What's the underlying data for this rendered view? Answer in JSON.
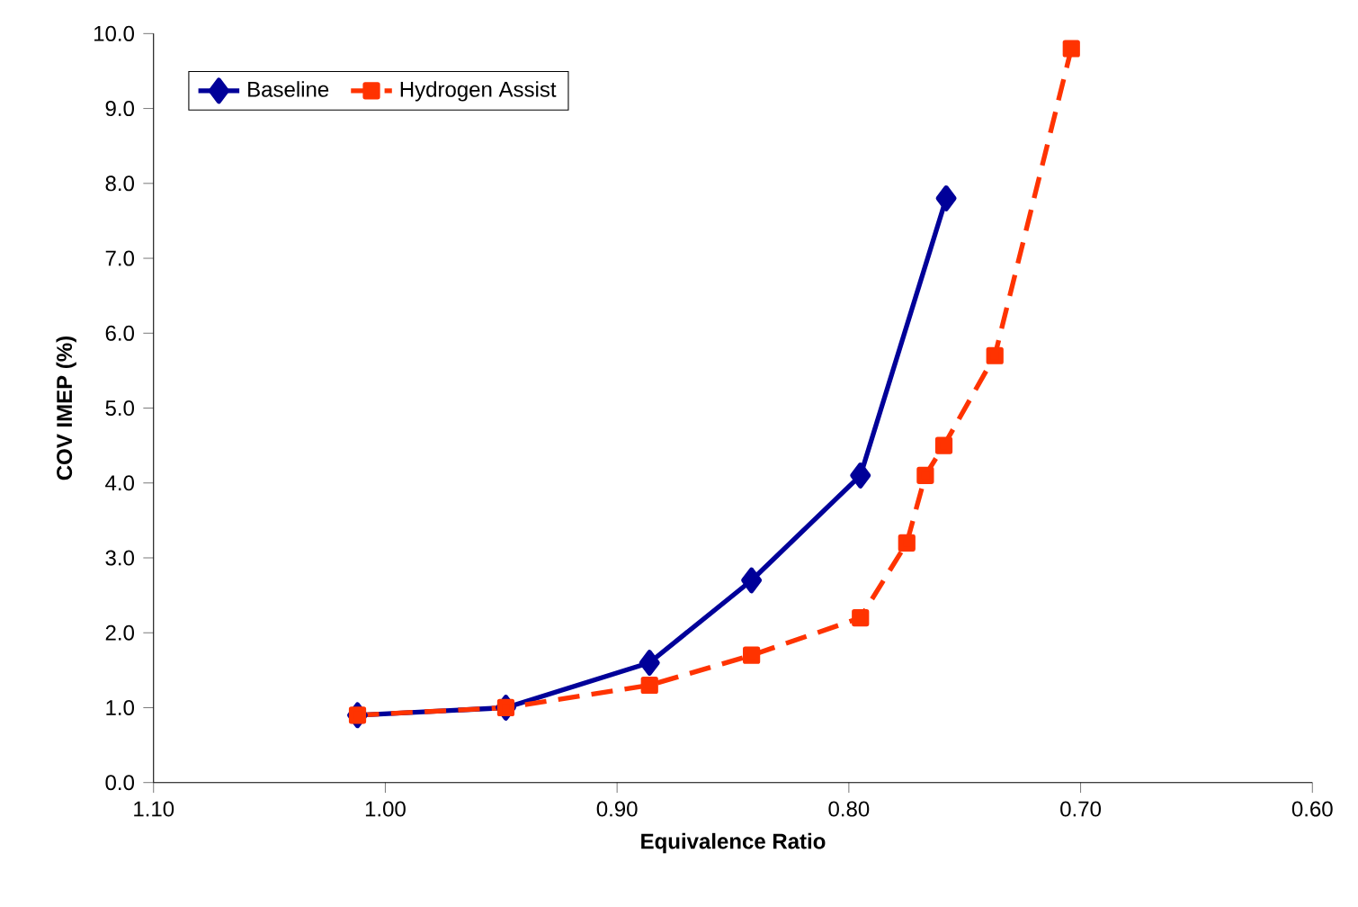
{
  "chart_data": {
    "type": "line",
    "xlabel": "Equivalence Ratio",
    "ylabel": "COV IMEP (%)",
    "xlim": [
      1.1,
      0.6
    ],
    "xticks": [
      {
        "value": 1.1,
        "label": "1.10"
      },
      {
        "value": 1.0,
        "label": "1.00"
      },
      {
        "value": 0.9,
        "label": "0.90"
      },
      {
        "value": 0.8,
        "label": "0.80"
      },
      {
        "value": 0.7,
        "label": "0.70"
      },
      {
        "value": 0.6,
        "label": "0.60"
      }
    ],
    "ylim": [
      0,
      10
    ],
    "yticks": [
      {
        "value": 0,
        "label": "0.0"
      },
      {
        "value": 1,
        "label": "1.0"
      },
      {
        "value": 2,
        "label": "2.0"
      },
      {
        "value": 3,
        "label": "3.0"
      },
      {
        "value": 4,
        "label": "4.0"
      },
      {
        "value": 5,
        "label": "5.0"
      },
      {
        "value": 6,
        "label": "6.0"
      },
      {
        "value": 7,
        "label": "7.0"
      },
      {
        "value": 8,
        "label": "8.0"
      },
      {
        "value": 9,
        "label": "9.0"
      },
      {
        "value": 10,
        "label": "10.0"
      }
    ],
    "grid": false,
    "legend": "top left",
    "series": [
      {
        "name": "Baseline",
        "color": "#000099",
        "marker": "diamond",
        "line_style": "solid",
        "x": [
          1.012,
          0.948,
          0.886,
          0.842,
          0.795,
          0.758
        ],
        "values": [
          0.9,
          1.0,
          1.6,
          2.7,
          4.1,
          7.8
        ]
      },
      {
        "name": "Hydrogen Assist",
        "color": "#ff3300",
        "marker": "square",
        "line_style": "dashed",
        "x": [
          1.012,
          0.948,
          0.886,
          0.842,
          0.795,
          0.775,
          0.767,
          0.759,
          0.737,
          0.704
        ],
        "values": [
          0.9,
          1.0,
          1.3,
          1.7,
          2.2,
          3.2,
          4.1,
          4.5,
          5.7,
          9.8
        ]
      }
    ]
  }
}
